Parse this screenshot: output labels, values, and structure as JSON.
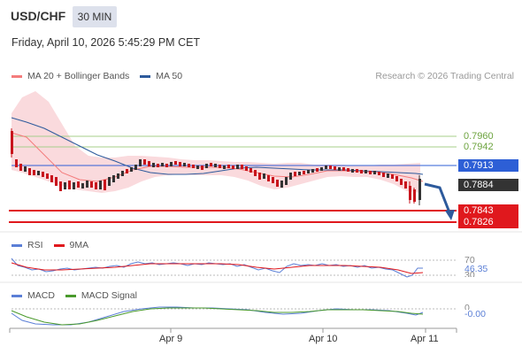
{
  "header": {
    "symbol": "USD/CHF",
    "timeframe": "30 MIN",
    "datetime": "Friday, April 10, 2026 5:45:29 PM CET"
  },
  "legend_main": {
    "items": [
      {
        "label": "MA 20 + Bollinger Bands",
        "color": "#f47c7c"
      },
      {
        "label": "MA 50",
        "color": "#2d5a9c"
      }
    ],
    "credit": "Research © 2026 Trading Central"
  },
  "levels": {
    "resistance_2": "0.7960",
    "resistance_1": "0.7942",
    "pivot": "0.7913",
    "last_price": "0.7884",
    "support_1": "0.7843",
    "support_2": "0.7826"
  },
  "colors": {
    "resistance": "#6ca33e",
    "pivot": "#2d5fd6",
    "support": "#e0181d",
    "price_tag": "#333333",
    "bollinger_fill": "#fadadd",
    "candle_up": "#333333",
    "candle_down": "#c8141c"
  },
  "rsi_panel": {
    "legend": [
      {
        "label": "RSI",
        "color": "#5b7fd6"
      },
      {
        "label": "9MA",
        "color": "#e0181d"
      }
    ],
    "level_high": "70",
    "level_low": "30",
    "value": "46.35"
  },
  "macd_panel": {
    "legend": [
      {
        "label": "MACD",
        "color": "#5b7fd6"
      },
      {
        "label": "MACD Signal",
        "color": "#4a9a2c"
      }
    ],
    "zero_label": "0",
    "value": "-0.00"
  },
  "x_axis": {
    "labels": [
      "Apr 9",
      "Apr 10",
      "Apr 11"
    ]
  }
}
